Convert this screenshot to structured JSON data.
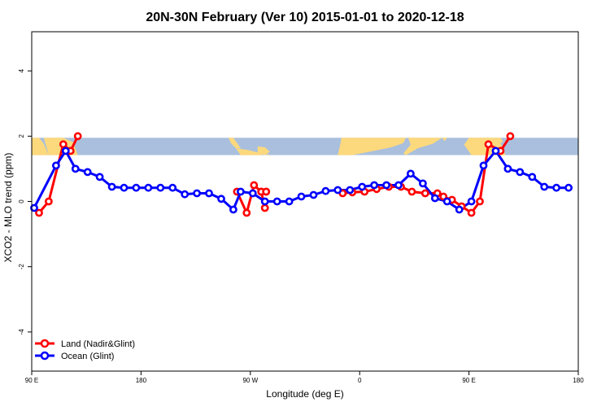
{
  "chart_data": {
    "type": "line",
    "title": "20N-30N February (Ver 10)   2015-01-01 to 2020-12-18",
    "xlabel": "Longitude (deg E)",
    "ylabel": "XCO2 - MLO trend (ppm)",
    "xlim": [
      90,
      540
    ],
    "ylim": [
      -5.2,
      5.2
    ],
    "x_ticks": [
      {
        "value": 90,
        "label": "90 E"
      },
      {
        "value": 180,
        "label": "180"
      },
      {
        "value": 270,
        "label": "90 W"
      },
      {
        "value": 360,
        "label": "0"
      },
      {
        "value": 450,
        "label": "90 E"
      },
      {
        "value": 540,
        "label": "180"
      }
    ],
    "y_ticks": [
      {
        "value": -4,
        "label": "-4"
      },
      {
        "value": -2,
        "label": "-2"
      },
      {
        "value": 0,
        "label": "0"
      },
      {
        "value": 2,
        "label": "2"
      },
      {
        "value": 4,
        "label": "4"
      }
    ],
    "legend_position": "bottom-left",
    "map_band": {
      "y_range": [
        1.42,
        1.95
      ],
      "ocean_color": "#a9bfdd",
      "land_color": "#fcd97d"
    },
    "series": [
      {
        "name": "Land (Nadir&Glint)",
        "color": "#ff0000",
        "segments": [
          {
            "x": [
              96,
              104,
              116,
              122,
              128
            ],
            "y": [
              -0.35,
              0.0,
              1.75,
              1.55,
              2.0
            ]
          },
          {
            "x": [
              259,
              267,
              273,
              279,
              282
            ],
            "y": [
              0.3,
              -0.35,
              0.5,
              0.3,
              -0.2
            ]
          },
          {
            "x": [
              279,
              283,
              283
            ],
            "y": [
              0.3,
              0.3,
              0.3
            ]
          },
          {
            "x": [
              346,
              354,
              364,
              374,
              384,
              394,
              403,
              414,
              424,
              429,
              436,
              444,
              452,
              459,
              466,
              476,
              484
            ],
            "y": [
              0.25,
              0.28,
              0.3,
              0.38,
              0.45,
              0.45,
              0.3,
              0.25,
              0.25,
              0.15,
              0.05,
              -0.15,
              -0.35,
              0.0,
              1.75,
              1.55,
              2.0
            ]
          }
        ]
      },
      {
        "name": "Ocean (Glint)",
        "color": "#0000ff",
        "segments": [
          {
            "x": [
              92,
              110,
              118,
              126,
              136,
              146,
              156,
              166,
              176,
              186,
              196,
              206,
              216,
              226,
              236,
              246,
              256,
              262,
              272,
              282,
              292,
              302,
              312,
              322,
              332,
              342,
              352,
              362,
              372,
              382,
              392,
              402,
              412,
              422,
              432,
              442,
              452,
              462,
              472,
              482,
              492,
              502,
              512,
              522,
              532
            ],
            "y": [
              -0.2,
              1.1,
              1.55,
              1.0,
              0.9,
              0.75,
              0.45,
              0.42,
              0.42,
              0.42,
              0.42,
              0.42,
              0.22,
              0.25,
              0.25,
              0.08,
              -0.25,
              0.3,
              0.25,
              0.0,
              0.0,
              0.0,
              0.15,
              0.2,
              0.32,
              0.35,
              0.35,
              0.45,
              0.5,
              0.5,
              0.5,
              0.85,
              0.55,
              0.1,
              0.0,
              -0.25,
              0.0,
              1.1,
              1.55,
              1.0,
              0.9,
              0.75,
              0.45,
              0.42,
              0.42
            ]
          }
        ]
      }
    ]
  }
}
